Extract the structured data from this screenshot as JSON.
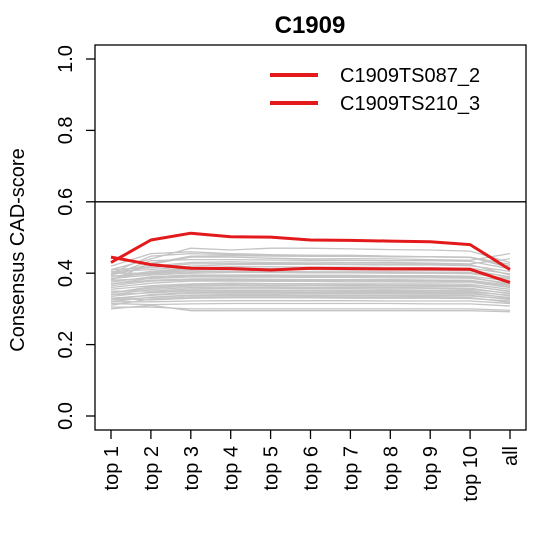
{
  "chart_data": {
    "type": "line",
    "title": "C1909",
    "xlabel": "",
    "ylabel": "Consensus CAD-score",
    "categories": [
      "top 1",
      "top 2",
      "top 3",
      "top 4",
      "top 5",
      "top 6",
      "top 7",
      "top 8",
      "top 9",
      "top 10",
      "all"
    ],
    "ylim": [
      0.0,
      1.0
    ],
    "yticks": [
      "0.0",
      "0.2",
      "0.4",
      "0.6",
      "0.8",
      "1.0"
    ],
    "reference_line": 0.6,
    "legend_position": "top-right",
    "highlight_color": "#e31a1c",
    "background_color": "#c4c4c4",
    "series": [
      {
        "name": "C1909TS087_2",
        "color": "#e31a1c",
        "values": [
          0.43,
          0.493,
          0.512,
          0.502,
          0.501,
          0.493,
          0.492,
          0.49,
          0.488,
          0.48,
          0.41
        ]
      },
      {
        "name": "C1909TS210_3",
        "color": "#e31a1c",
        "values": [
          0.445,
          0.424,
          0.414,
          0.413,
          0.409,
          0.414,
          0.413,
          0.412,
          0.412,
          0.411,
          0.374
        ]
      }
    ],
    "background_series": [
      [
        0.41,
        0.44,
        0.47,
        0.465,
        0.47,
        0.47,
        0.468,
        0.466,
        0.465,
        0.462,
        0.43
      ],
      [
        0.42,
        0.455,
        0.46,
        0.455,
        0.452,
        0.45,
        0.45,
        0.448,
        0.446,
        0.444,
        0.42
      ],
      [
        0.4,
        0.425,
        0.445,
        0.445,
        0.442,
        0.44,
        0.441,
        0.44,
        0.438,
        0.436,
        0.455
      ],
      [
        0.395,
        0.42,
        0.43,
        0.432,
        0.43,
        0.431,
        0.43,
        0.43,
        0.428,
        0.426,
        0.44
      ],
      [
        0.405,
        0.41,
        0.42,
        0.424,
        0.425,
        0.425,
        0.424,
        0.423,
        0.423,
        0.421,
        0.405
      ],
      [
        0.39,
        0.405,
        0.415,
        0.418,
        0.418,
        0.417,
        0.417,
        0.416,
        0.415,
        0.414,
        0.398
      ],
      [
        0.4,
        0.4,
        0.408,
        0.41,
        0.41,
        0.41,
        0.409,
        0.409,
        0.408,
        0.407,
        0.39
      ],
      [
        0.385,
        0.395,
        0.4,
        0.402,
        0.402,
        0.401,
        0.401,
        0.4,
        0.4,
        0.399,
        0.385
      ],
      [
        0.375,
        0.39,
        0.395,
        0.395,
        0.395,
        0.394,
        0.394,
        0.393,
        0.393,
        0.392,
        0.378
      ],
      [
        0.38,
        0.385,
        0.39,
        0.389,
        0.389,
        0.388,
        0.388,
        0.387,
        0.387,
        0.386,
        0.372
      ],
      [
        0.37,
        0.38,
        0.384,
        0.384,
        0.383,
        0.382,
        0.382,
        0.382,
        0.381,
        0.38,
        0.366
      ],
      [
        0.36,
        0.372,
        0.378,
        0.378,
        0.377,
        0.377,
        0.376,
        0.376,
        0.375,
        0.375,
        0.36
      ],
      [
        0.355,
        0.365,
        0.37,
        0.372,
        0.371,
        0.371,
        0.37,
        0.37,
        0.37,
        0.369,
        0.355
      ],
      [
        0.345,
        0.358,
        0.364,
        0.366,
        0.365,
        0.365,
        0.364,
        0.364,
        0.363,
        0.363,
        0.35
      ],
      [
        0.35,
        0.35,
        0.356,
        0.358,
        0.358,
        0.357,
        0.357,
        0.356,
        0.356,
        0.355,
        0.344
      ],
      [
        0.34,
        0.345,
        0.35,
        0.35,
        0.35,
        0.35,
        0.349,
        0.349,
        0.348,
        0.348,
        0.338
      ],
      [
        0.33,
        0.338,
        0.344,
        0.344,
        0.344,
        0.343,
        0.343,
        0.343,
        0.342,
        0.342,
        0.332
      ],
      [
        0.325,
        0.332,
        0.338,
        0.338,
        0.338,
        0.337,
        0.337,
        0.337,
        0.336,
        0.336,
        0.328
      ],
      [
        0.33,
        0.325,
        0.33,
        0.331,
        0.331,
        0.331,
        0.33,
        0.33,
        0.33,
        0.329,
        0.322
      ],
      [
        0.32,
        0.32,
        0.322,
        0.323,
        0.323,
        0.323,
        0.323,
        0.322,
        0.322,
        0.322,
        0.315
      ],
      [
        0.315,
        0.312,
        0.314,
        0.315,
        0.315,
        0.315,
        0.315,
        0.315,
        0.314,
        0.314,
        0.308
      ],
      [
        0.305,
        0.305,
        0.3,
        0.3,
        0.3,
        0.3,
        0.3,
        0.3,
        0.3,
        0.3,
        0.296
      ],
      [
        0.3,
        0.31,
        0.295,
        0.295,
        0.295,
        0.295,
        0.295,
        0.295,
        0.295,
        0.295,
        0.292
      ],
      [
        0.395,
        0.435,
        0.438,
        0.438,
        0.437,
        0.436,
        0.436,
        0.435,
        0.435,
        0.433,
        0.412
      ],
      [
        0.41,
        0.415,
        0.426,
        0.427,
        0.427,
        0.427,
        0.426,
        0.426,
        0.425,
        0.424,
        0.395
      ],
      [
        0.385,
        0.402,
        0.412,
        0.413,
        0.413,
        0.412,
        0.412,
        0.411,
        0.411,
        0.41,
        0.388
      ],
      [
        0.392,
        0.398,
        0.404,
        0.405,
        0.405,
        0.404,
        0.404,
        0.404,
        0.403,
        0.402,
        0.38
      ],
      [
        0.37,
        0.386,
        0.392,
        0.392,
        0.392,
        0.391,
        0.391,
        0.391,
        0.39,
        0.389,
        0.368
      ],
      [
        0.365,
        0.378,
        0.381,
        0.381,
        0.38,
        0.38,
        0.38,
        0.379,
        0.379,
        0.378,
        0.362
      ],
      [
        0.345,
        0.362,
        0.367,
        0.368,
        0.367,
        0.367,
        0.367,
        0.366,
        0.366,
        0.365,
        0.348
      ],
      [
        0.34,
        0.354,
        0.36,
        0.361,
        0.361,
        0.36,
        0.36,
        0.36,
        0.359,
        0.358,
        0.342
      ],
      [
        0.335,
        0.347,
        0.352,
        0.353,
        0.353,
        0.352,
        0.352,
        0.352,
        0.351,
        0.351,
        0.336
      ],
      [
        0.325,
        0.34,
        0.346,
        0.347,
        0.347,
        0.346,
        0.346,
        0.346,
        0.345,
        0.345,
        0.33
      ],
      [
        0.32,
        0.333,
        0.339,
        0.34,
        0.34,
        0.339,
        0.339,
        0.339,
        0.338,
        0.338,
        0.326
      ],
      [
        0.31,
        0.328,
        0.334,
        0.334,
        0.334,
        0.334,
        0.333,
        0.333,
        0.333,
        0.332,
        0.318
      ],
      [
        0.38,
        0.428,
        0.448,
        0.449,
        0.448,
        0.447,
        0.447,
        0.446,
        0.446,
        0.445,
        0.425
      ],
      [
        0.4,
        0.448,
        0.455,
        0.452,
        0.45,
        0.449,
        0.448,
        0.447,
        0.446,
        0.445,
        0.415
      ]
    ]
  }
}
